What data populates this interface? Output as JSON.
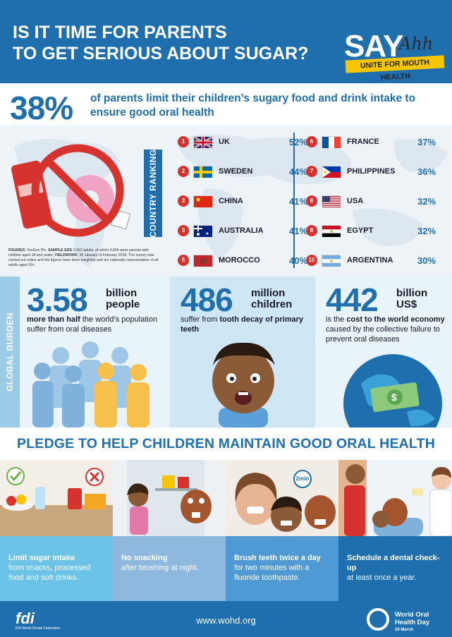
{
  "header": {
    "title_line1": "IS IT TIME FOR PARENTS",
    "title_line2": "TO GET SERIOUS ABOUT SUGAR?",
    "logo_say": "SAY",
    "logo_ahh": "Ahh",
    "logo_tagline": "UNITE FOR MOUTH HEALTH"
  },
  "stat": {
    "percent": "38%",
    "text": "of parents limit their children’s sugary food and drink intake to ensure good oral health"
  },
  "ranking": {
    "label": "COUNTRY RANKING",
    "left": [
      {
        "rank": "1",
        "country": "UK",
        "pct": "52%",
        "flag": "uk"
      },
      {
        "rank": "2",
        "country": "SWEDEN",
        "pct": "44%",
        "flag": "sweden"
      },
      {
        "rank": "3",
        "country": "CHINA",
        "pct": "41%",
        "flag": "china"
      },
      {
        "rank": "3",
        "country": "AUSTRALIA",
        "pct": "41%",
        "flag": "australia"
      },
      {
        "rank": "5",
        "country": "MOROCCO",
        "pct": "40%",
        "flag": "morocco"
      }
    ],
    "right": [
      {
        "rank": "6",
        "country": "FRANCE",
        "pct": "37%",
        "flag": "france"
      },
      {
        "rank": "7",
        "country": "PHILIPPINES",
        "pct": "36%",
        "flag": "philippines"
      },
      {
        "rank": "8",
        "country": "USA",
        "pct": "32%",
        "flag": "usa"
      },
      {
        "rank": "8",
        "country": "EGYPT",
        "pct": "32%",
        "flag": "egypt"
      },
      {
        "rank": "10",
        "country": "ARGENTINA",
        "pct": "30%",
        "flag": "argentina"
      }
    ],
    "figures_lead": "FIGURES:",
    "figures_1": " YouGov Plc; ",
    "figures_sample_lead": "SAMPLE SIZE",
    "figures_2": " 9,552 adults, of which 4,956 were parents with children aged 18 and under; ",
    "figures_field_lead": "FIELDWORK:",
    "figures_3": " 30 January–8 February 2018. The survey was carried out online and the figures have been weighted and are nationally representative of all adults aged 18+."
  },
  "burden": {
    "label": "GLOBAL BURDEN",
    "people": {
      "number": "3.58",
      "unit1": "billion",
      "unit2": "people",
      "bold": "more than half",
      "rest": " the world’s population suffer from oral diseases"
    },
    "children": {
      "number": "486",
      "unit1": "million",
      "unit2": "children",
      "lead": "suffer from ",
      "bold": "tooth decay of primary teeth"
    },
    "cost": {
      "number": "442",
      "unit1": "billion",
      "unit2": "US$",
      "lead": "is the ",
      "bold": "cost to the world economy",
      "rest": " caused by the collective failure to prevent oral diseases"
    }
  },
  "pledge": {
    "title": "PLEDGE TO HELP CHILDREN MAINTAIN GOOD ORAL HEALTH",
    "items": [
      {
        "bold": "Limit sugar intake",
        "rest": "from snacks, processed food and soft drinks.",
        "color": "#6cc3e8"
      },
      {
        "bold": "No snacking",
        "rest": "after brushing at night.",
        "color": "#8fb8de"
      },
      {
        "bold": "Brush teeth twice a day",
        "rest": "for two minutes with a fluoride toothpaste.",
        "color": "#4f9ad4"
      },
      {
        "bold": "Schedule a dental check-up",
        "rest": "at least once a year.",
        "color": "#1f6fae"
      }
    ],
    "timer_label": "2min"
  },
  "footer": {
    "fdi": "fdi",
    "fdi_sub": "FDI World Dental Federation",
    "url": "www.wohd.org",
    "wohd_line1": "World Oral",
    "wohd_line2": "Health Day",
    "wohd_date": "20 March"
  },
  "colors": {
    "brand_blue": "#1f6fae",
    "light_blue": "#9bcbe6",
    "red": "#d6322e",
    "yellow": "#f5c500"
  }
}
